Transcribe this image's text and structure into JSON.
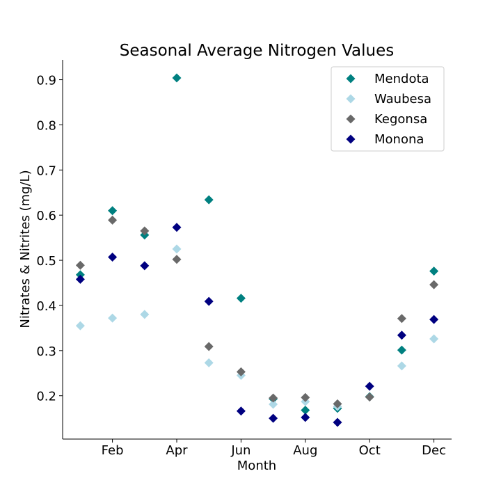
{
  "chart_data": {
    "type": "scatter",
    "title": "Seasonal Average Nitrogen Values",
    "xlabel": "Month",
    "ylabel": "Nitrates & Nitrites (mg/L)",
    "x": [
      1,
      2,
      3,
      4,
      5,
      6,
      7,
      8,
      9,
      10,
      11,
      12
    ],
    "xlim": [
      0.45,
      12.55
    ],
    "ylim": [
      0.104,
      0.944
    ],
    "x_ticks": [
      {
        "value": 2,
        "label": "Feb"
      },
      {
        "value": 4,
        "label": "Apr"
      },
      {
        "value": 6,
        "label": "Jun"
      },
      {
        "value": 8,
        "label": "Aug"
      },
      {
        "value": 10,
        "label": "Oct"
      },
      {
        "value": 12,
        "label": "Dec"
      }
    ],
    "y_ticks": [
      {
        "value": 0.2,
        "label": "0.2"
      },
      {
        "value": 0.3,
        "label": "0.3"
      },
      {
        "value": 0.4,
        "label": "0.4"
      },
      {
        "value": 0.5,
        "label": "0.5"
      },
      {
        "value": 0.6,
        "label": "0.6"
      },
      {
        "value": 0.7,
        "label": "0.7"
      },
      {
        "value": 0.8,
        "label": "0.8"
      },
      {
        "value": 0.9,
        "label": "0.9"
      }
    ],
    "legend_position": "top-right",
    "marker": "diamond",
    "series": [
      {
        "name": "Mendota",
        "color": "#008080",
        "values": [
          0.468,
          0.61,
          0.556,
          0.904,
          0.634,
          0.416,
          0.193,
          0.168,
          0.172,
          0.198,
          0.301,
          0.476
        ]
      },
      {
        "name": "Waubesa",
        "color": "#add8e6",
        "values": [
          0.355,
          0.372,
          0.38,
          0.525,
          0.273,
          0.245,
          0.181,
          0.187,
          0.176,
          0.197,
          0.266,
          0.326
        ]
      },
      {
        "name": "Kegonsa",
        "color": "#696969",
        "values": [
          0.489,
          0.589,
          0.565,
          0.502,
          0.309,
          0.253,
          0.195,
          0.196,
          0.182,
          0.197,
          0.371,
          0.446
        ]
      },
      {
        "name": "Monona",
        "color": "#000080",
        "values": [
          0.458,
          0.507,
          0.488,
          0.573,
          0.409,
          0.166,
          0.15,
          0.152,
          0.141,
          0.221,
          0.334,
          0.369
        ]
      }
    ]
  }
}
